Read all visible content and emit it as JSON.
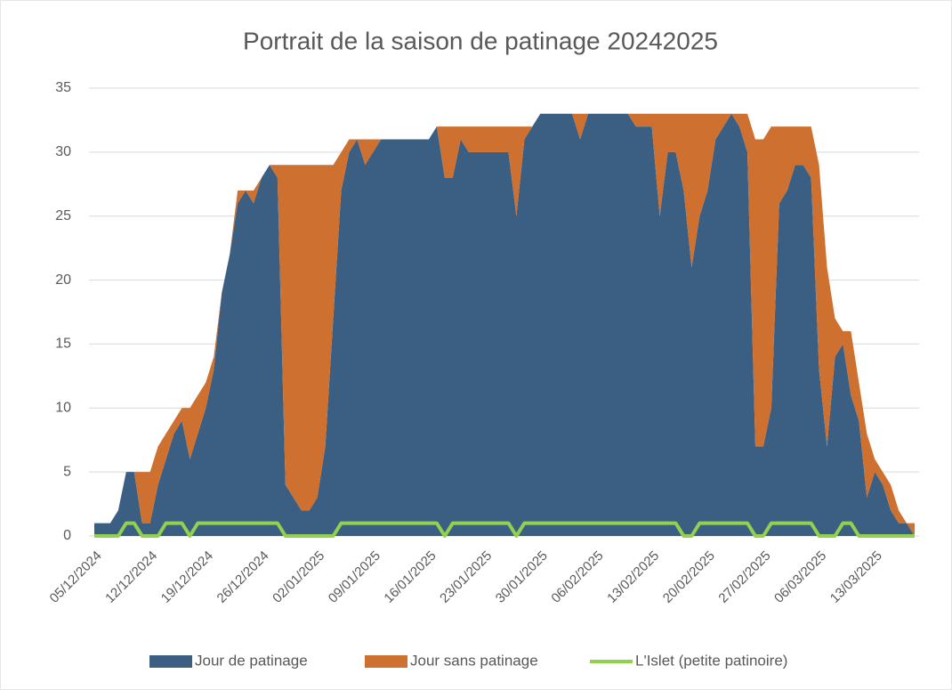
{
  "chart_data": {
    "type": "stacked_area",
    "title": "Portrait de la saison de patinage 20242025",
    "categories": [
      "05/12/2024",
      null,
      null,
      null,
      null,
      null,
      null,
      "12/12/2024",
      null,
      null,
      null,
      null,
      null,
      null,
      "19/12/2024",
      null,
      null,
      null,
      null,
      null,
      null,
      "26/12/2024",
      null,
      null,
      null,
      null,
      null,
      null,
      "02/01/2025",
      null,
      null,
      null,
      null,
      null,
      null,
      "09/01/2025",
      null,
      null,
      null,
      null,
      null,
      null,
      "16/01/2025",
      null,
      null,
      null,
      null,
      null,
      null,
      "23/01/2025",
      null,
      null,
      null,
      null,
      null,
      null,
      "30/01/2025",
      null,
      null,
      null,
      null,
      null,
      null,
      "06/02/2025",
      null,
      null,
      null,
      null,
      null,
      null,
      "13/02/2025",
      null,
      null,
      null,
      null,
      null,
      null,
      "20/02/2025",
      null,
      null,
      null,
      null,
      null,
      null,
      "27/02/2025",
      null,
      null,
      null,
      null,
      null,
      null,
      "06/03/2025",
      null,
      null,
      null,
      null,
      null,
      null,
      "13/03/2025",
      null,
      null,
      null,
      null,
      null
    ],
    "series": [
      {
        "name": "Jour de patinage",
        "color": "#3b5f82",
        "kind": "area",
        "values": [
          1,
          1,
          1,
          2,
          5,
          5,
          1,
          1,
          4,
          6,
          8,
          9,
          6,
          8,
          10,
          13,
          19,
          22,
          26,
          27,
          26,
          28,
          29,
          28,
          4,
          3,
          2,
          2,
          3,
          7,
          17,
          27,
          30,
          31,
          29,
          30,
          31,
          31,
          31,
          31,
          31,
          31,
          31,
          32,
          28,
          28,
          31,
          30,
          30,
          30,
          30,
          30,
          30,
          25,
          31,
          32,
          33,
          33,
          33,
          33,
          33,
          31,
          33,
          33,
          33,
          33,
          33,
          33,
          32,
          32,
          32,
          25,
          30,
          30,
          27,
          21,
          25,
          27,
          31,
          32,
          33,
          32,
          30,
          7,
          7,
          10,
          26,
          27,
          29,
          29,
          28,
          13,
          7,
          14,
          15,
          11,
          9,
          3,
          5,
          4,
          2,
          1,
          1,
          0
        ]
      },
      {
        "name": "Jour sans patinage",
        "color": "#cd7030",
        "kind": "area",
        "values": [
          0,
          0,
          0,
          0,
          0,
          0,
          4,
          4,
          3,
          2,
          1,
          1,
          4,
          3,
          2,
          1,
          0,
          0,
          1,
          0,
          1,
          0,
          0,
          1,
          25,
          26,
          27,
          27,
          26,
          22,
          12,
          3,
          1,
          0,
          2,
          1,
          0,
          0,
          0,
          0,
          0,
          0,
          0,
          0,
          4,
          4,
          1,
          2,
          2,
          2,
          2,
          2,
          2,
          7,
          1,
          0,
          0,
          0,
          0,
          0,
          0,
          2,
          0,
          0,
          0,
          0,
          0,
          0,
          1,
          1,
          1,
          8,
          3,
          3,
          6,
          12,
          8,
          6,
          2,
          1,
          0,
          1,
          3,
          24,
          24,
          22,
          6,
          5,
          3,
          3,
          4,
          16,
          14,
          3,
          1,
          5,
          3,
          5,
          1,
          1,
          2,
          1,
          0,
          1
        ]
      },
      {
        "name": "L'Islet (petite patinoire)",
        "color": "#92d050",
        "kind": "line",
        "values": [
          0,
          0,
          0,
          0,
          1,
          1,
          0,
          0,
          0,
          1,
          1,
          1,
          0,
          1,
          1,
          1,
          1,
          1,
          1,
          1,
          1,
          1,
          1,
          1,
          0,
          0,
          0,
          0,
          0,
          0,
          0,
          1,
          1,
          1,
          1,
          1,
          1,
          1,
          1,
          1,
          1,
          1,
          1,
          1,
          0,
          1,
          1,
          1,
          1,
          1,
          1,
          1,
          1,
          0,
          1,
          1,
          1,
          1,
          1,
          1,
          1,
          1,
          1,
          1,
          1,
          1,
          1,
          1,
          1,
          1,
          1,
          1,
          1,
          1,
          0,
          0,
          1,
          1,
          1,
          1,
          1,
          1,
          1,
          0,
          0,
          1,
          1,
          1,
          1,
          1,
          1,
          0,
          0,
          0,
          1,
          1,
          0,
          0,
          0,
          0,
          0,
          0,
          0,
          0
        ]
      }
    ],
    "ylim": [
      0,
      35
    ],
    "yticks": [
      0,
      5,
      10,
      15,
      20,
      25,
      30,
      35
    ],
    "grid": true
  }
}
